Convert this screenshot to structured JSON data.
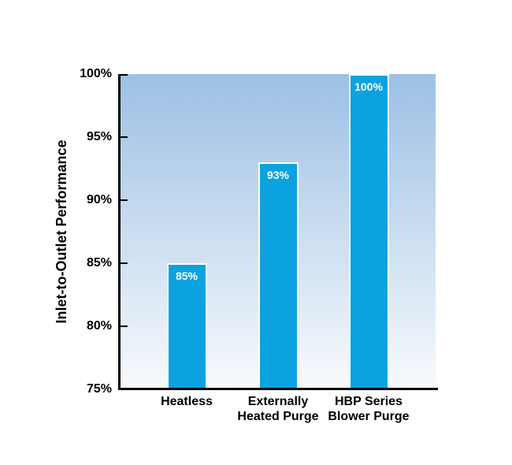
{
  "chart_data": {
    "type": "bar",
    "title": "",
    "xlabel": "",
    "ylabel": "Inlet-to-Outlet Performance",
    "categories": [
      "Heatless",
      "Externally\nHeated Purge",
      "HBP Series\nBlower Purge"
    ],
    "values": [
      85,
      93,
      100
    ],
    "bar_labels": [
      "85%",
      "93%",
      "100%"
    ],
    "ylim": [
      75,
      100
    ],
    "ytick_step": 5,
    "ytick_labels": [
      "100%",
      "95%",
      "90%",
      "85%",
      "80%",
      "75%"
    ],
    "grid": false,
    "legend": false,
    "layout_hints": {
      "ticks_inside": true,
      "background": "vertical blue-to-white gradient inside plot area"
    },
    "colors": {
      "bar_fill": "#0ca2df",
      "bar_border": "#ffffff",
      "bar_label_text": "#ffffff",
      "axis": "#000000",
      "text": "#000000",
      "plot_gradient_top": "#9cc0e4",
      "plot_gradient_bottom": "#f8fafc",
      "page_background": "#ffffff"
    }
  }
}
